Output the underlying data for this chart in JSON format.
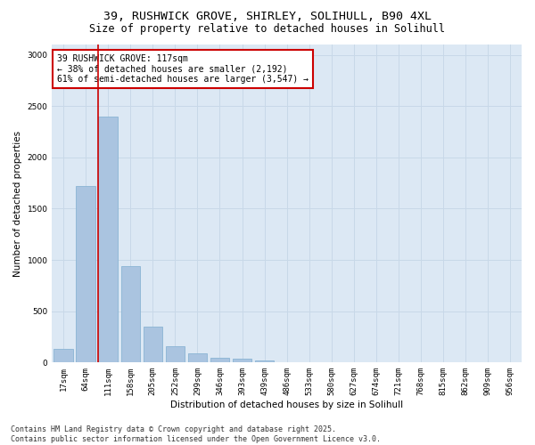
{
  "title_line1": "39, RUSHWICK GROVE, SHIRLEY, SOLIHULL, B90 4XL",
  "title_line2": "Size of property relative to detached houses in Solihull",
  "xlabel": "Distribution of detached houses by size in Solihull",
  "ylabel": "Number of detached properties",
  "categories": [
    "17sqm",
    "64sqm",
    "111sqm",
    "158sqm",
    "205sqm",
    "252sqm",
    "299sqm",
    "346sqm",
    "393sqm",
    "439sqm",
    "486sqm",
    "533sqm",
    "580sqm",
    "627sqm",
    "674sqm",
    "721sqm",
    "768sqm",
    "815sqm",
    "862sqm",
    "909sqm",
    "956sqm"
  ],
  "values": [
    130,
    1720,
    2400,
    940,
    350,
    160,
    90,
    50,
    40,
    20,
    0,
    0,
    0,
    0,
    0,
    0,
    0,
    0,
    0,
    0,
    0
  ],
  "bar_color": "#aac4e0",
  "bar_edgecolor": "#8ab4d4",
  "vline_color": "#cc0000",
  "vline_x_index": 2,
  "annotation_text": "39 RUSHWICK GROVE: 117sqm\n← 38% of detached houses are smaller (2,192)\n61% of semi-detached houses are larger (3,547) →",
  "annotation_box_edgecolor": "#cc0000",
  "annotation_box_facecolor": "#ffffff",
  "ylim": [
    0,
    3100
  ],
  "yticks": [
    0,
    500,
    1000,
    1500,
    2000,
    2500,
    3000
  ],
  "grid_color": "#c8d8e8",
  "background_color": "#dce8f4",
  "footer_line1": "Contains HM Land Registry data © Crown copyright and database right 2025.",
  "footer_line2": "Contains public sector information licensed under the Open Government Licence v3.0.",
  "title_fontsize": 9.5,
  "subtitle_fontsize": 8.5,
  "axis_label_fontsize": 7.5,
  "tick_fontsize": 6.5,
  "annotation_fontsize": 7,
  "footer_fontsize": 6
}
